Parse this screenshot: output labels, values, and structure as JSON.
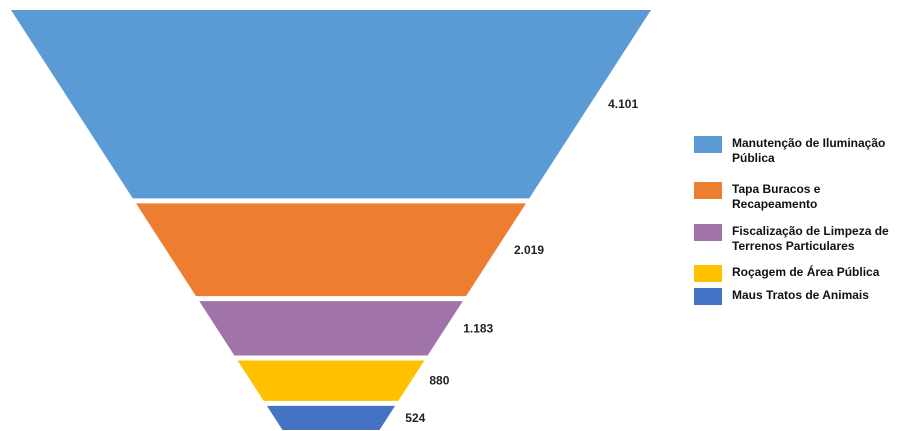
{
  "chart_data": {
    "type": "funnel",
    "categories": [
      "Manutenção de Iluminação Pública",
      "Tapa Buracos e Recapeamento",
      "Fiscalização de Limpeza de Terrenos Particulares",
      "Roçagem de Área Pública",
      "Maus Tratos de Animais"
    ],
    "values": [
      4101,
      2019,
      1183,
      880,
      524
    ],
    "value_labels": [
      "4.101",
      "2.019",
      "1.183",
      "880",
      "524"
    ],
    "colors": [
      "#5B9BD5",
      "#ED7D31",
      "#A074A8",
      "#FFC000",
      "#4472C4"
    ],
    "legend_position": "right",
    "title": "",
    "grid": false
  },
  "legend": {
    "items": [
      {
        "label": "Manutenção de Iluminação Pública",
        "color": "#5B9BD5"
      },
      {
        "label": "Tapa Buracos e Recapeamento",
        "color": "#ED7D31"
      },
      {
        "label": "Fiscalização de Limpeza de Terrenos Particulares",
        "color": "#A074A8"
      },
      {
        "label": "Roçagem de Área Pública",
        "color": "#FFC000"
      },
      {
        "label": "Maus Tratos de Animais",
        "color": "#4472C4"
      }
    ]
  }
}
